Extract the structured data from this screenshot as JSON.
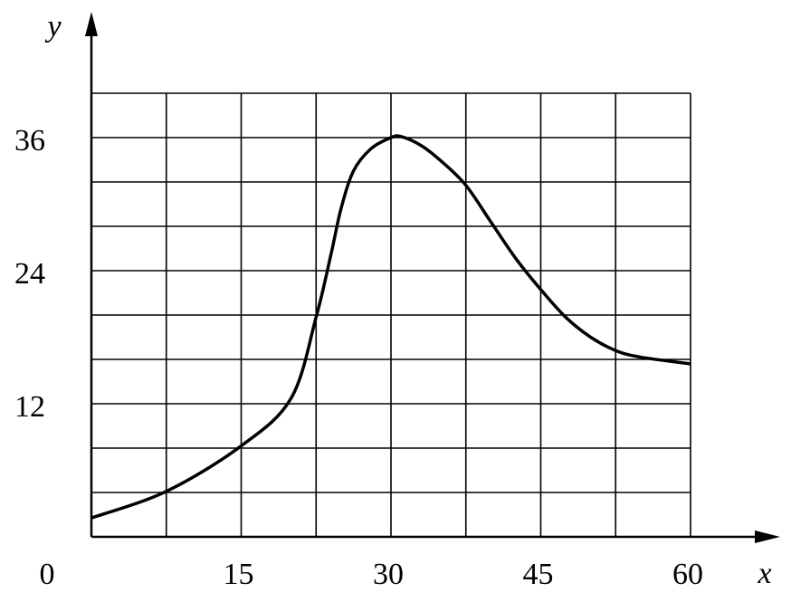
{
  "chart_data": {
    "type": "line",
    "x_label": "x",
    "y_label": "y",
    "xlim": [
      0,
      60
    ],
    "ylim": [
      0,
      40
    ],
    "xticks": [
      0,
      15,
      30,
      45,
      60
    ],
    "yticks": [
      12,
      24,
      36
    ],
    "minor_xticks": [
      7.5,
      22.5,
      37.5,
      52.5
    ],
    "minor_yticks": [
      4,
      8,
      16,
      20,
      28,
      32,
      40
    ],
    "grid": true,
    "series": [
      {
        "color": "#000000",
        "x": [
          0,
          7.5,
          15,
          20,
          22.5,
          24,
          25,
          26.25,
          28,
          30,
          31,
          33,
          35,
          37.5,
          40,
          42.5,
          45,
          47.5,
          50,
          52.5,
          55,
          60
        ],
        "values": [
          1.7,
          4.1,
          8.2,
          12.5,
          19.8,
          25.5,
          29.6,
          33,
          35,
          36,
          36.1,
          35.3,
          33.9,
          31.7,
          28.4,
          25.1,
          22.3,
          19.8,
          18,
          16.8,
          16.2,
          15.6
        ]
      }
    ]
  }
}
